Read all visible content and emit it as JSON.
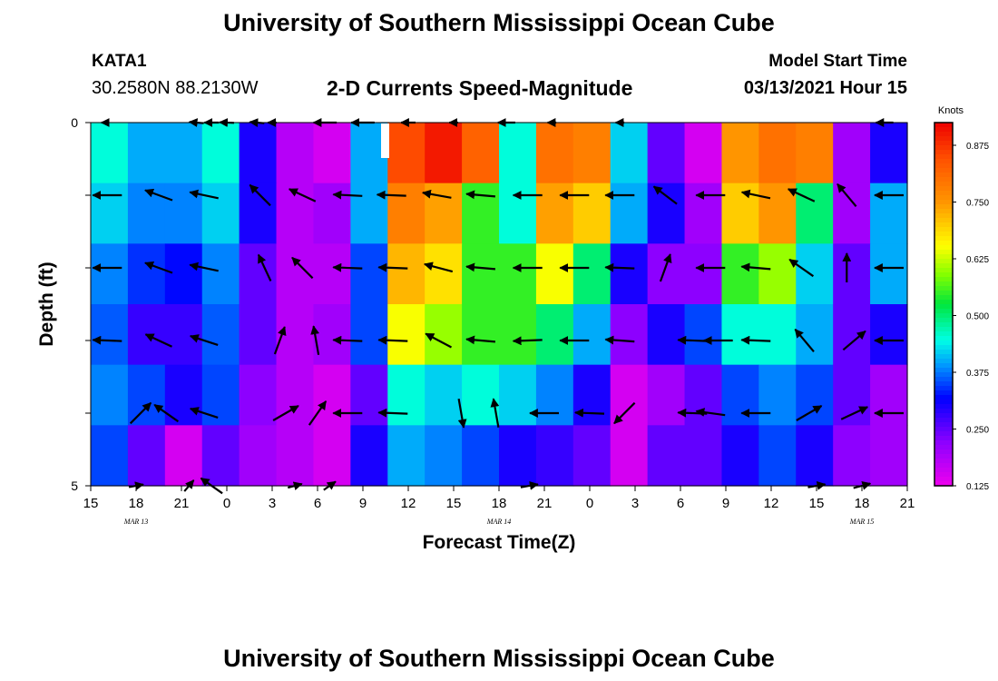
{
  "header": {
    "title": "University of Southern Mississippi Ocean Cube",
    "station": "KATA1",
    "coordinates": "30.2580N 88.2130W",
    "subtitle": "2-D Currents Speed-Magnitude",
    "model_start_label": "Model Start Time",
    "model_start_value": "03/13/2021 Hour 15"
  },
  "footer": {
    "title": "University of Southern Mississippi Ocean Cube"
  },
  "chart_data": {
    "type": "heatmap",
    "title": "2-D Currents Speed-Magnitude",
    "xlabel": "Forecast Time(Z)",
    "ylabel": "Depth (ft)",
    "x_tick_labels": [
      "15",
      "18",
      "21",
      "0",
      "3",
      "6",
      "9",
      "12",
      "15",
      "18",
      "21",
      "0",
      "3",
      "6",
      "9",
      "12",
      "15",
      "18",
      "21"
    ],
    "date_labels": [
      {
        "text": "MAR  13",
        "hour": 18
      },
      {
        "text": "MAR  14",
        "hour": 42
      },
      {
        "text": "MAR  15",
        "hour": 66
      }
    ],
    "y_tick_labels": [
      "0",
      "5"
    ],
    "ylim": [
      0,
      5
    ],
    "hours_range": [
      0,
      54
    ],
    "colorbar": {
      "units": "Knots",
      "min": 0.125,
      "max": 0.925,
      "tick_labels": [
        "0.875",
        "0.750",
        "0.625",
        "0.500",
        "0.375",
        "0.250",
        "0.125"
      ],
      "tick_values": [
        0.875,
        0.75,
        0.625,
        0.5,
        0.375,
        0.25,
        0.125
      ]
    },
    "depth_rows": [
      0,
      1,
      2,
      3,
      4,
      5
    ],
    "speed_knots": [
      [
        0.45,
        0.4,
        0.4,
        0.45,
        0.3,
        0.18,
        0.15,
        0.4,
        0.85,
        0.9,
        0.82,
        0.45,
        0.8,
        0.78,
        0.42,
        0.25,
        0.15,
        0.75,
        0.8,
        0.78,
        0.2,
        0.3
      ],
      [
        0.42,
        0.38,
        0.38,
        0.42,
        0.3,
        0.18,
        0.2,
        0.4,
        0.78,
        0.74,
        0.55,
        0.45,
        0.74,
        0.7,
        0.4,
        0.3,
        0.2,
        0.7,
        0.75,
        0.5,
        0.2,
        0.4
      ],
      [
        0.38,
        0.34,
        0.32,
        0.38,
        0.25,
        0.18,
        0.18,
        0.35,
        0.72,
        0.68,
        0.55,
        0.55,
        0.65,
        0.5,
        0.3,
        0.22,
        0.22,
        0.55,
        0.6,
        0.42,
        0.25,
        0.4
      ],
      [
        0.36,
        0.28,
        0.28,
        0.36,
        0.25,
        0.18,
        0.2,
        0.35,
        0.65,
        0.6,
        0.55,
        0.55,
        0.5,
        0.4,
        0.22,
        0.3,
        0.35,
        0.45,
        0.45,
        0.4,
        0.25,
        0.3
      ],
      [
        0.38,
        0.35,
        0.3,
        0.35,
        0.22,
        0.18,
        0.15,
        0.25,
        0.45,
        0.42,
        0.45,
        0.42,
        0.38,
        0.3,
        0.15,
        0.2,
        0.25,
        0.35,
        0.38,
        0.35,
        0.25,
        0.2
      ],
      [
        0.35,
        0.25,
        0.15,
        0.25,
        0.2,
        0.18,
        0.15,
        0.3,
        0.4,
        0.38,
        0.35,
        0.3,
        0.28,
        0.25,
        0.15,
        0.25,
        0.25,
        0.3,
        0.35,
        0.3,
        0.22,
        0.2
      ]
    ],
    "vectors": [
      {
        "depth": 0,
        "hour": 0.8,
        "dir": 180,
        "len": 0.1
      },
      {
        "depth": 0,
        "hour": 7.0,
        "dir": 175,
        "len": 0.5
      },
      {
        "depth": 0,
        "hour": 8.0,
        "dir": 180,
        "len": 0.5
      },
      {
        "depth": 0,
        "hour": 9.0,
        "dir": 178,
        "len": 0.5
      },
      {
        "depth": 0,
        "hour": 11.0,
        "dir": 175,
        "len": 0.5
      },
      {
        "depth": 0,
        "hour": 12.0,
        "dir": 180,
        "len": 0.3
      },
      {
        "depth": 0,
        "hour": 15.5,
        "dir": 180,
        "len": 0.8
      },
      {
        "depth": 0,
        "hour": 18.0,
        "dir": 180,
        "len": 0.8
      },
      {
        "depth": 0,
        "hour": 21.0,
        "dir": 180,
        "len": 0.5
      },
      {
        "depth": 0,
        "hour": 24.0,
        "dir": 180,
        "len": 0.3
      },
      {
        "depth": 0,
        "hour": 27.5,
        "dir": 180,
        "len": 0.6
      },
      {
        "depth": 0,
        "hour": 30.5,
        "dir": 180,
        "len": 0.3
      },
      {
        "depth": 0,
        "hour": 35.0,
        "dir": 180,
        "len": 0.3
      },
      {
        "depth": 0,
        "hour": 52.5,
        "dir": 180,
        "len": 0.6
      },
      {
        "depth": 1,
        "hour": 1.1,
        "dir": 180,
        "len": 1
      },
      {
        "depth": 1,
        "hour": 4.5,
        "dir": 160,
        "len": 1
      },
      {
        "depth": 1,
        "hour": 7.5,
        "dir": 168,
        "len": 1
      },
      {
        "depth": 1,
        "hour": 11.2,
        "dir": 135,
        "len": 1
      },
      {
        "depth": 1,
        "hour": 14.0,
        "dir": 155,
        "len": 1
      },
      {
        "depth": 1,
        "hour": 17.0,
        "dir": 177,
        "len": 1
      },
      {
        "depth": 1,
        "hour": 19.9,
        "dir": 178,
        "len": 1
      },
      {
        "depth": 1,
        "hour": 22.9,
        "dir": 170,
        "len": 1
      },
      {
        "depth": 1,
        "hour": 25.8,
        "dir": 175,
        "len": 1
      },
      {
        "depth": 1,
        "hour": 28.9,
        "dir": 180,
        "len": 1
      },
      {
        "depth": 1,
        "hour": 32.0,
        "dir": 180,
        "len": 1
      },
      {
        "depth": 1,
        "hour": 35.0,
        "dir": 180,
        "len": 1
      },
      {
        "depth": 1,
        "hour": 38.0,
        "dir": 143,
        "len": 1
      },
      {
        "depth": 1,
        "hour": 41.0,
        "dir": 180,
        "len": 1
      },
      {
        "depth": 1,
        "hour": 44.0,
        "dir": 168,
        "len": 1
      },
      {
        "depth": 1,
        "hour": 47.0,
        "dir": 155,
        "len": 1
      },
      {
        "depth": 1,
        "hour": 50.0,
        "dir": 130,
        "len": 1
      },
      {
        "depth": 1,
        "hour": 52.8,
        "dir": 180,
        "len": 1
      },
      {
        "depth": 2,
        "hour": 1.1,
        "dir": 180,
        "len": 1
      },
      {
        "depth": 2,
        "hour": 4.5,
        "dir": 160,
        "len": 1
      },
      {
        "depth": 2,
        "hour": 7.5,
        "dir": 168,
        "len": 1
      },
      {
        "depth": 2,
        "hour": 11.5,
        "dir": 115,
        "len": 1
      },
      {
        "depth": 2,
        "hour": 14.0,
        "dir": 135,
        "len": 1
      },
      {
        "depth": 2,
        "hour": 17.0,
        "dir": 178,
        "len": 1
      },
      {
        "depth": 2,
        "hour": 20.0,
        "dir": 178,
        "len": 1
      },
      {
        "depth": 2,
        "hour": 23.0,
        "dir": 165,
        "len": 1
      },
      {
        "depth": 2,
        "hour": 25.8,
        "dir": 175,
        "len": 1
      },
      {
        "depth": 2,
        "hour": 28.9,
        "dir": 180,
        "len": 1
      },
      {
        "depth": 2,
        "hour": 32.0,
        "dir": 180,
        "len": 1
      },
      {
        "depth": 2,
        "hour": 35.0,
        "dir": 178,
        "len": 1
      },
      {
        "depth": 2,
        "hour": 38.0,
        "dir": 70,
        "len": 1
      },
      {
        "depth": 2,
        "hour": 41.0,
        "dir": 180,
        "len": 1
      },
      {
        "depth": 2,
        "hour": 44.0,
        "dir": 175,
        "len": 1
      },
      {
        "depth": 2,
        "hour": 47.0,
        "dir": 145,
        "len": 1
      },
      {
        "depth": 2,
        "hour": 50.0,
        "dir": 90,
        "len": 1
      },
      {
        "depth": 2,
        "hour": 52.8,
        "dir": 180,
        "len": 1
      },
      {
        "depth": 3,
        "hour": 1.1,
        "dir": 178,
        "len": 1
      },
      {
        "depth": 3,
        "hour": 4.5,
        "dir": 155,
        "len": 1
      },
      {
        "depth": 3,
        "hour": 7.5,
        "dir": 162,
        "len": 1
      },
      {
        "depth": 3,
        "hour": 12.5,
        "dir": 70,
        "len": 1
      },
      {
        "depth": 3,
        "hour": 14.9,
        "dir": 100,
        "len": 1
      },
      {
        "depth": 3,
        "hour": 17.0,
        "dir": 178,
        "len": 1
      },
      {
        "depth": 3,
        "hour": 20.0,
        "dir": 178,
        "len": 1
      },
      {
        "depth": 3,
        "hour": 23.0,
        "dir": 152,
        "len": 1
      },
      {
        "depth": 3,
        "hour": 25.8,
        "dir": 175,
        "len": 1
      },
      {
        "depth": 3,
        "hour": 28.9,
        "dir": 182,
        "len": 1
      },
      {
        "depth": 3,
        "hour": 32.0,
        "dir": 180,
        "len": 1
      },
      {
        "depth": 3,
        "hour": 35.0,
        "dir": 176,
        "len": 1
      },
      {
        "depth": 3,
        "hour": 39.8,
        "dir": 178,
        "len": 1
      },
      {
        "depth": 3,
        "hour": 41.5,
        "dir": 180,
        "len": 1
      },
      {
        "depth": 3,
        "hour": 44.0,
        "dir": 178,
        "len": 1
      },
      {
        "depth": 3,
        "hour": 47.2,
        "dir": 130,
        "len": 1
      },
      {
        "depth": 3,
        "hour": 50.5,
        "dir": 40,
        "len": 1
      },
      {
        "depth": 3,
        "hour": 52.8,
        "dir": 180,
        "len": 1
      },
      {
        "depth": 4,
        "hour": 3.3,
        "dir": 45,
        "len": 1
      },
      {
        "depth": 4,
        "hour": 5.0,
        "dir": 145,
        "len": 1
      },
      {
        "depth": 4,
        "hour": 7.5,
        "dir": 162,
        "len": 1
      },
      {
        "depth": 4,
        "hour": 12.9,
        "dir": 30,
        "len": 1
      },
      {
        "depth": 4,
        "hour": 15.0,
        "dir": 55,
        "len": 1
      },
      {
        "depth": 4,
        "hour": 17.0,
        "dir": 180,
        "len": 1
      },
      {
        "depth": 4,
        "hour": 20.0,
        "dir": 178,
        "len": 1
      },
      {
        "depth": 4,
        "hour": 24.5,
        "dir": -80,
        "len": 1
      },
      {
        "depth": 4,
        "hour": 26.8,
        "dir": 100,
        "len": 1
      },
      {
        "depth": 4,
        "hour": 30.0,
        "dir": 180,
        "len": 1
      },
      {
        "depth": 4,
        "hour": 33.0,
        "dir": 178,
        "len": 1
      },
      {
        "depth": 4,
        "hour": 35.3,
        "dir": -135,
        "len": 1
      },
      {
        "depth": 4,
        "hour": 39.8,
        "dir": 178,
        "len": 1
      },
      {
        "depth": 4,
        "hour": 41.0,
        "dir": 172,
        "len": 1
      },
      {
        "depth": 4,
        "hour": 44.0,
        "dir": 180,
        "len": 1
      },
      {
        "depth": 4,
        "hour": 47.5,
        "dir": 30,
        "len": 1
      },
      {
        "depth": 4,
        "hour": 50.5,
        "dir": 25,
        "len": 1
      },
      {
        "depth": 4,
        "hour": 52.8,
        "dir": 180,
        "len": 1
      },
      {
        "depth": 5,
        "hour": 3.0,
        "dir": 10,
        "len": 0.5
      },
      {
        "depth": 5,
        "hour": 6.5,
        "dir": 50,
        "len": 0.5
      },
      {
        "depth": 5,
        "hour": 8.0,
        "dir": 145,
        "len": 0.9
      },
      {
        "depth": 5,
        "hour": 13.5,
        "dir": 15,
        "len": 0.5
      },
      {
        "depth": 5,
        "hour": 15.8,
        "dir": 35,
        "len": 0.5
      },
      {
        "depth": 5,
        "hour": 29.0,
        "dir": 10,
        "len": 0.6
      },
      {
        "depth": 5,
        "hour": 48.0,
        "dir": 10,
        "len": 0.6
      },
      {
        "depth": 5,
        "hour": 51.0,
        "dir": 15,
        "len": 0.6
      }
    ]
  }
}
